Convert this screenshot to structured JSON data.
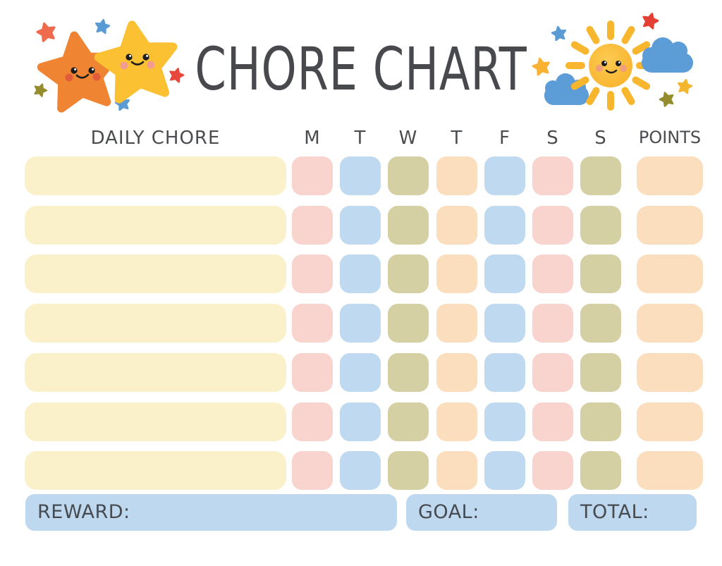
{
  "title": "CHORE CHART",
  "table": {
    "chore_header": "DAILY CHORE",
    "day_headers": [
      "M",
      "T",
      "W",
      "T",
      "F",
      "S",
      "S"
    ],
    "points_header": "POINTS",
    "rows": 7,
    "chores": [
      "",
      "",
      "",
      "",
      "",
      "",
      ""
    ],
    "day_colors": [
      "#F9D3CD",
      "#BFD9F0",
      "#D5D0A4",
      "#FBDEBD",
      "#BFD9F0",
      "#F9D3CD",
      "#D5D0A4"
    ],
    "points_color": "#FBDEBD",
    "chore_bar_color": "#FAF0C9"
  },
  "footer": {
    "reward_label": "REWARD:",
    "goal_label": "GOAL:",
    "total_label": "TOTAL:",
    "bar_color": "#BED8EF"
  },
  "colors": {
    "text": "#47494D",
    "star_orange": "#EF8532",
    "star_yellow": "#FBC133",
    "sun_yellow": "#FABB35",
    "cloud_blue": "#5C9CD7",
    "mini_star_red": "#E8483C",
    "mini_star_blue": "#5B9BD5",
    "mini_star_olive": "#958C2E"
  },
  "decorations": {
    "left_icons": [
      "orange-star-icon",
      "yellow-star-icon",
      "mini-star-icons"
    ],
    "right_icons": [
      "sun-icon",
      "cloud-icon",
      "mini-star-icons"
    ]
  }
}
